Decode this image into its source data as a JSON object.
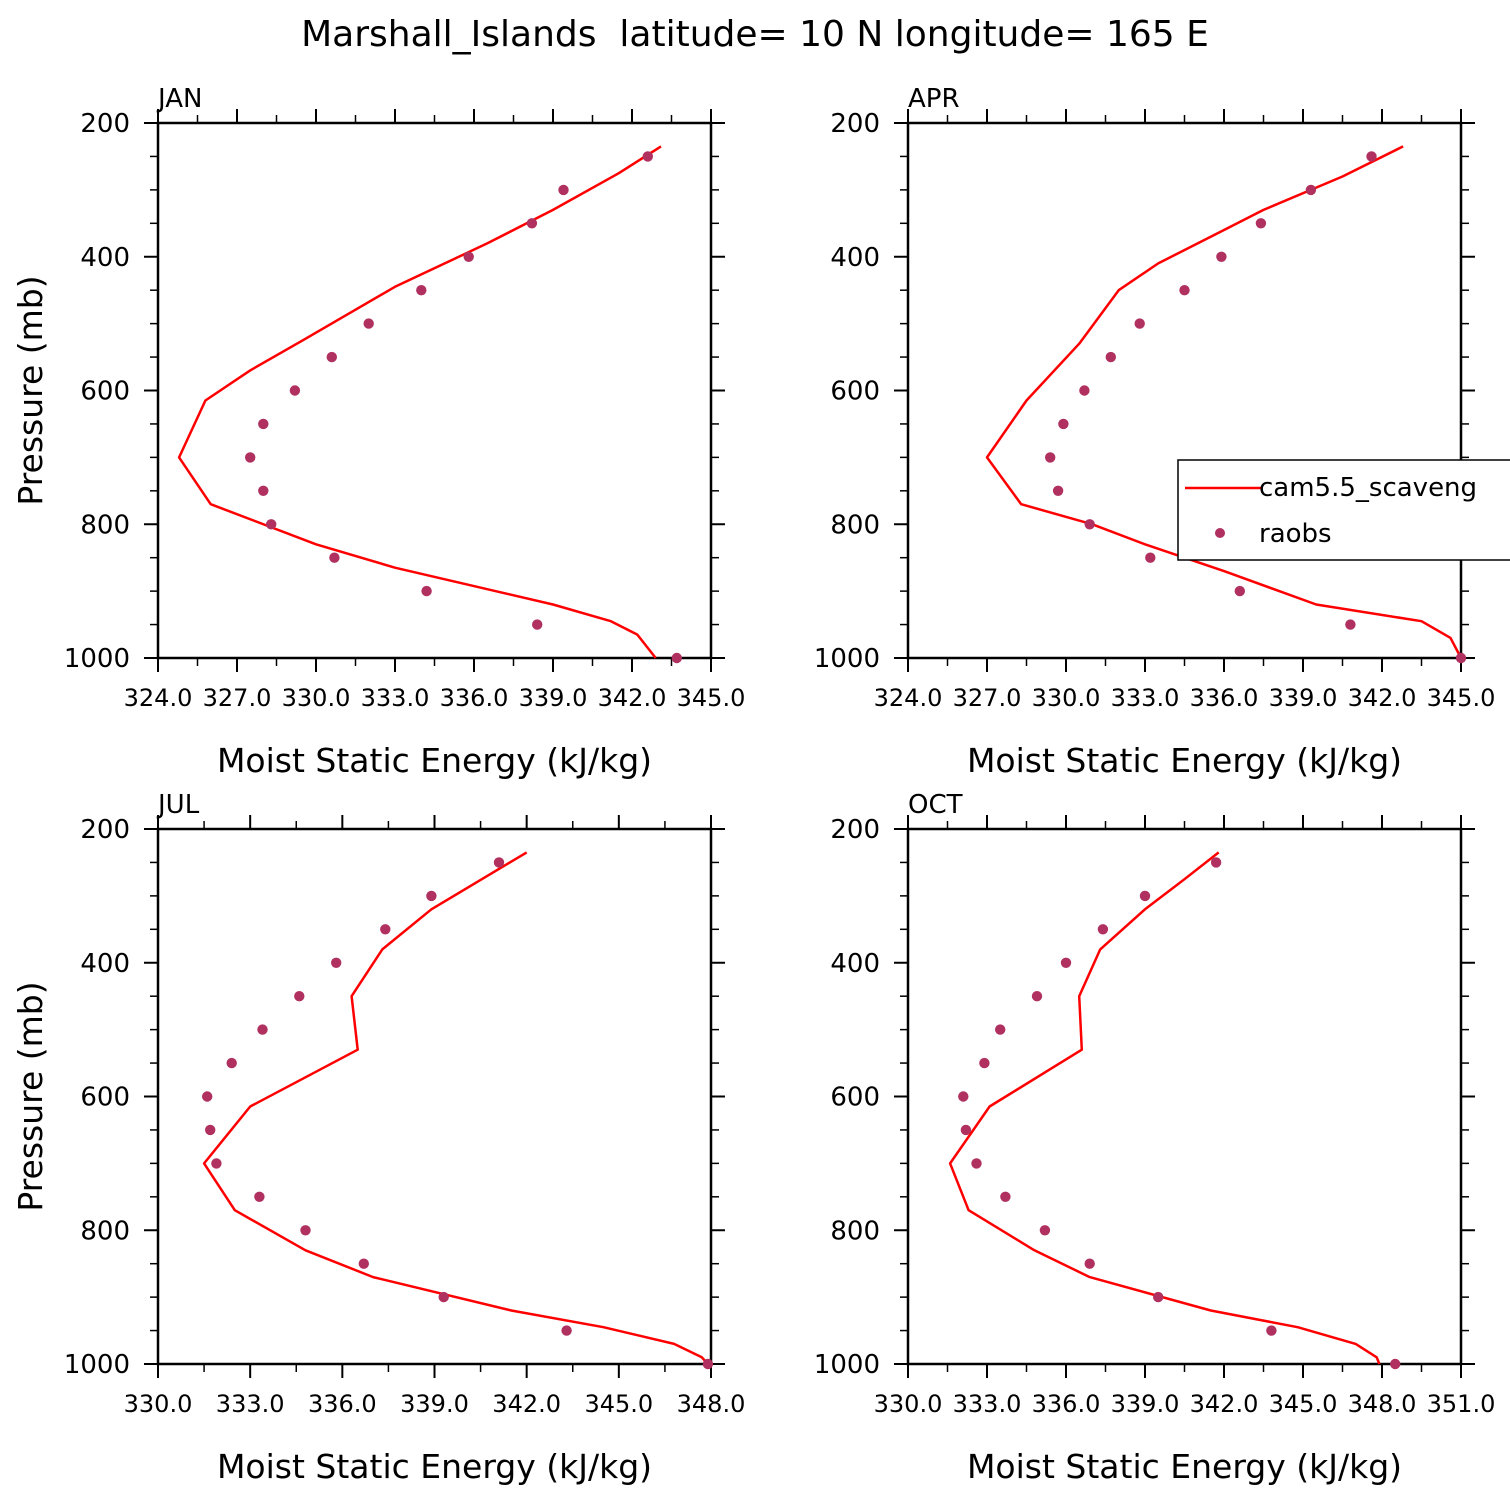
{
  "figure": {
    "title": "Marshall_Islands  latitude= 10 N longitude= 165 E"
  },
  "legend": {
    "model_label": "cam5.5_scaveng",
    "obs_label": "raobs",
    "line_color": "#ff0000",
    "marker_color": "#b03060",
    "placement": "right side of APR panel, clipped"
  },
  "chart_data": [
    {
      "type": "line",
      "panel": "JAN",
      "title": "JAN",
      "xlabel": "Moist Static Energy (kJ/kg)",
      "ylabel": "Pressure (mb)",
      "xlim": [
        324.0,
        345.0
      ],
      "ylim": [
        1000,
        200
      ],
      "xticks": [
        "324.0",
        "327.0",
        "330.0",
        "333.0",
        "336.0",
        "339.0",
        "342.0",
        "345.0"
      ],
      "yticks": [
        "200",
        "400",
        "600",
        "800",
        "1000"
      ],
      "series": [
        {
          "name": "cam5.5_scaveng",
          "kind": "line",
          "points": [
            [
              343.1,
              235
            ],
            [
              341.5,
              275
            ],
            [
              339.0,
              330
            ],
            [
              336.5,
              380
            ],
            [
              333.0,
              445
            ],
            [
              329.5,
              525
            ],
            [
              327.5,
              570
            ],
            [
              325.8,
              615
            ],
            [
              324.8,
              700
            ],
            [
              326.0,
              770
            ],
            [
              330.0,
              830
            ],
            [
              333.0,
              865
            ],
            [
              339.0,
              920
            ],
            [
              341.2,
              945
            ],
            [
              342.2,
              965
            ],
            [
              342.9,
              1000
            ]
          ]
        },
        {
          "name": "raobs",
          "kind": "scatter",
          "points": [
            [
              342.6,
              250
            ],
            [
              339.4,
              300
            ],
            [
              338.2,
              350
            ],
            [
              335.8,
              400
            ],
            [
              334.0,
              450
            ],
            [
              332.0,
              500
            ],
            [
              330.6,
              550
            ],
            [
              329.2,
              600
            ],
            [
              328.0,
              650
            ],
            [
              327.5,
              700
            ],
            [
              328.0,
              750
            ],
            [
              328.3,
              800
            ],
            [
              330.7,
              850
            ],
            [
              334.2,
              900
            ],
            [
              338.4,
              950
            ],
            [
              343.7,
              1000
            ]
          ]
        }
      ]
    },
    {
      "type": "line",
      "panel": "APR",
      "title": "APR",
      "xlabel": "Moist Static Energy (kJ/kg)",
      "ylabel": "",
      "xlim": [
        324.0,
        345.0
      ],
      "ylim": [
        1000,
        200
      ],
      "xticks": [
        "324.0",
        "327.0",
        "330.0",
        "333.0",
        "336.0",
        "339.0",
        "342.0",
        "345.0"
      ],
      "yticks": [
        "200",
        "400",
        "600",
        "800",
        "1000"
      ],
      "series": [
        {
          "name": "cam5.5_scaveng",
          "kind": "line",
          "points": [
            [
              342.8,
              235
            ],
            [
              340.5,
              280
            ],
            [
              337.5,
              330
            ],
            [
              336.0,
              360
            ],
            [
              333.5,
              410
            ],
            [
              332.0,
              450
            ],
            [
              330.5,
              530
            ],
            [
              328.5,
              615
            ],
            [
              327.0,
              700
            ],
            [
              328.3,
              770
            ],
            [
              331.0,
              800
            ],
            [
              333.0,
              830
            ],
            [
              336.0,
              870
            ],
            [
              339.5,
              920
            ],
            [
              343.5,
              945
            ],
            [
              344.6,
              970
            ],
            [
              345.0,
              1000
            ]
          ]
        },
        {
          "name": "raobs",
          "kind": "scatter",
          "points": [
            [
              341.6,
              250
            ],
            [
              339.3,
              300
            ],
            [
              337.4,
              350
            ],
            [
              335.9,
              400
            ],
            [
              334.5,
              450
            ],
            [
              332.8,
              500
            ],
            [
              331.7,
              550
            ],
            [
              330.7,
              600
            ],
            [
              329.9,
              650
            ],
            [
              329.4,
              700
            ],
            [
              329.7,
              750
            ],
            [
              330.9,
              800
            ],
            [
              333.2,
              850
            ],
            [
              336.6,
              900
            ],
            [
              340.8,
              950
            ],
            [
              345.0,
              1000
            ]
          ]
        }
      ]
    },
    {
      "type": "line",
      "panel": "JUL",
      "title": "JUL",
      "xlabel": "Moist Static Energy (kJ/kg)",
      "ylabel": "Pressure (mb)",
      "xlim": [
        330.0,
        348.0
      ],
      "ylim": [
        1000,
        200
      ],
      "xticks": [
        "330.0",
        "333.0",
        "336.0",
        "339.0",
        "342.0",
        "345.0",
        "348.0"
      ],
      "yticks": [
        "200",
        "400",
        "600",
        "800",
        "1000"
      ],
      "series": [
        {
          "name": "cam5.5_scaveng",
          "kind": "line",
          "points": [
            [
              342.0,
              235
            ],
            [
              338.9,
              320
            ],
            [
              337.3,
              380
            ],
            [
              336.3,
              450
            ],
            [
              336.5,
              530
            ],
            [
              333.0,
              615
            ],
            [
              331.5,
              700
            ],
            [
              332.5,
              770
            ],
            [
              334.8,
              830
            ],
            [
              337.0,
              870
            ],
            [
              341.5,
              920
            ],
            [
              344.5,
              945
            ],
            [
              346.8,
              970
            ],
            [
              347.7,
              990
            ],
            [
              347.9,
              1000
            ]
          ]
        },
        {
          "name": "raobs",
          "kind": "scatter",
          "points": [
            [
              341.1,
              250
            ],
            [
              338.9,
              300
            ],
            [
              337.4,
              350
            ],
            [
              335.8,
              400
            ],
            [
              334.6,
              450
            ],
            [
              333.4,
              500
            ],
            [
              332.4,
              550
            ],
            [
              331.6,
              600
            ],
            [
              331.7,
              650
            ],
            [
              331.9,
              700
            ],
            [
              333.3,
              750
            ],
            [
              334.8,
              800
            ],
            [
              336.7,
              850
            ],
            [
              339.3,
              900
            ],
            [
              343.3,
              950
            ],
            [
              347.9,
              1000
            ]
          ]
        }
      ]
    },
    {
      "type": "line",
      "panel": "OCT",
      "title": "OCT",
      "xlabel": "Moist Static Energy (kJ/kg)",
      "ylabel": "",
      "xlim": [
        330.0,
        351.0
      ],
      "ylim": [
        1000,
        200
      ],
      "xticks": [
        "330.0",
        "333.0",
        "336.0",
        "339.0",
        "342.0",
        "345.0",
        "348.0",
        "351.0"
      ],
      "yticks": [
        "200",
        "400",
        "600",
        "800",
        "1000"
      ],
      "series": [
        {
          "name": "cam5.5_scaveng",
          "kind": "line",
          "points": [
            [
              341.8,
              235
            ],
            [
              340.5,
              275
            ],
            [
              339.0,
              320
            ],
            [
              337.3,
              380
            ],
            [
              336.5,
              450
            ],
            [
              336.6,
              530
            ],
            [
              333.1,
              615
            ],
            [
              331.6,
              700
            ],
            [
              332.3,
              770
            ],
            [
              334.8,
              830
            ],
            [
              336.9,
              870
            ],
            [
              341.5,
              920
            ],
            [
              344.8,
              945
            ],
            [
              347.0,
              970
            ],
            [
              347.8,
              990
            ],
            [
              347.9,
              1000
            ]
          ]
        },
        {
          "name": "raobs",
          "kind": "scatter",
          "points": [
            [
              341.7,
              250
            ],
            [
              339.0,
              300
            ],
            [
              337.4,
              350
            ],
            [
              336.0,
              400
            ],
            [
              334.9,
              450
            ],
            [
              333.5,
              500
            ],
            [
              332.9,
              550
            ],
            [
              332.1,
              600
            ],
            [
              332.2,
              650
            ],
            [
              332.6,
              700
            ],
            [
              333.7,
              750
            ],
            [
              335.2,
              800
            ],
            [
              336.9,
              850
            ],
            [
              339.5,
              900
            ],
            [
              343.8,
              950
            ],
            [
              348.5,
              1000
            ]
          ]
        }
      ]
    }
  ]
}
